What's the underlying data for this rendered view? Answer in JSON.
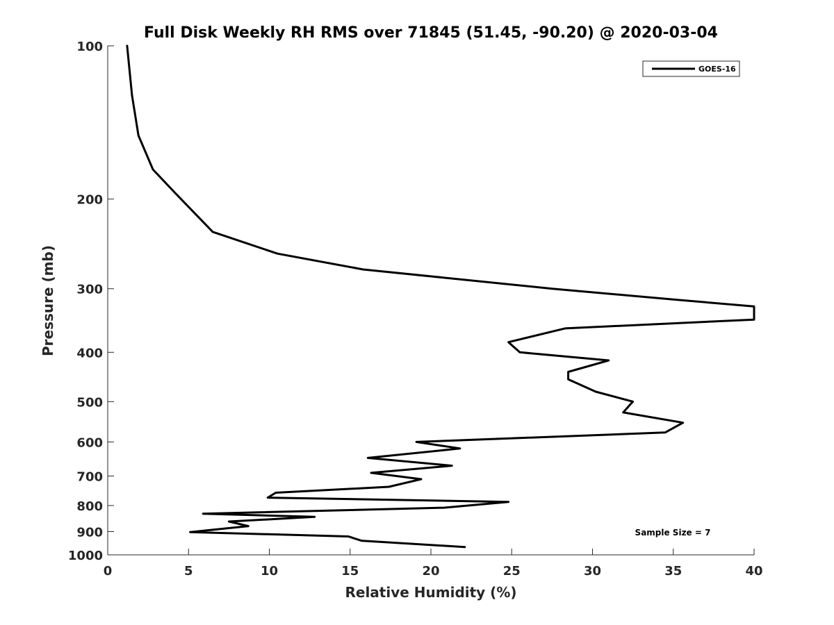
{
  "chart_data": {
    "type": "line",
    "title": "Full Disk Weekly RH RMS over 71845 (51.45, -90.20) @ 2020-03-04",
    "xlabel": "Relative Humidity (%)",
    "ylabel": "Pressure (mb)",
    "xlim": [
      0,
      40
    ],
    "ylim": [
      100,
      1000
    ],
    "y_scale": "log",
    "y_reversed": true,
    "xticks": [
      0,
      5,
      10,
      15,
      20,
      25,
      30,
      35,
      40
    ],
    "yticks": [
      100,
      200,
      300,
      400,
      500,
      600,
      700,
      800,
      900,
      1000
    ],
    "grid": false,
    "legend_position": "top-right",
    "annotation": "Sample Size = 7",
    "series": [
      {
        "name": "GOES-16",
        "color": "#000000",
        "points": [
          [
            1.2,
            100
          ],
          [
            1.5,
            125
          ],
          [
            1.9,
            150
          ],
          [
            2.8,
            175
          ],
          [
            4.2,
            195
          ],
          [
            6.5,
            232
          ],
          [
            10.5,
            256
          ],
          [
            15.8,
            275
          ],
          [
            27.5,
            300
          ],
          [
            35.0,
            315
          ],
          [
            40.0,
            325
          ],
          [
            40.0,
            345
          ],
          [
            28.3,
            359
          ],
          [
            24.8,
            382
          ],
          [
            25.5,
            400
          ],
          [
            31.0,
            415
          ],
          [
            28.5,
            437
          ],
          [
            28.5,
            452
          ],
          [
            30.2,
            478
          ],
          [
            32.5,
            500
          ],
          [
            31.9,
            525
          ],
          [
            35.6,
            550
          ],
          [
            34.5,
            575
          ],
          [
            19.1,
            600
          ],
          [
            21.8,
            618
          ],
          [
            16.1,
            645
          ],
          [
            21.3,
            668
          ],
          [
            16.3,
            690
          ],
          [
            19.4,
            710
          ],
          [
            17.4,
            735
          ],
          [
            10.4,
            755
          ],
          [
            9.9,
            772
          ],
          [
            24.8,
            787
          ],
          [
            20.8,
            808
          ],
          [
            5.9,
            830
          ],
          [
            12.8,
            842
          ],
          [
            7.5,
            860
          ],
          [
            8.7,
            878
          ],
          [
            5.1,
            902
          ],
          [
            14.9,
            920
          ],
          [
            15.7,
            938
          ],
          [
            22.1,
            965
          ]
        ]
      }
    ]
  }
}
